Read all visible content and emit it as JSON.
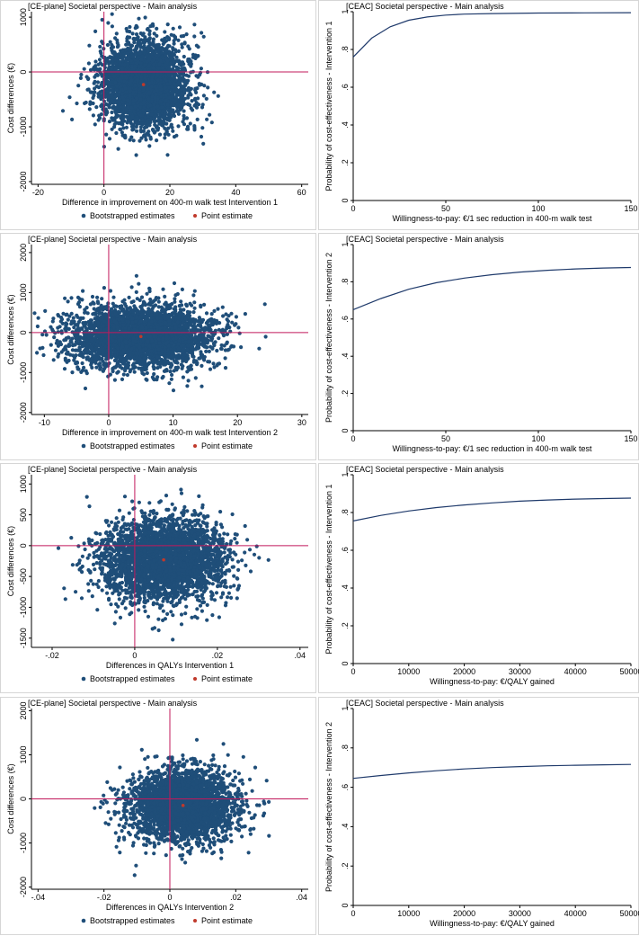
{
  "colors": {
    "scatter": "#1f4e79",
    "point": "#c0392b",
    "reference": "#c2185b",
    "curve": "#1f3a6b",
    "axis": "#000000"
  },
  "chart_data": [
    {
      "type": "scatter",
      "id": "ce1",
      "title": "[CE-plane] Societal perspective - Main analysis",
      "xlabel": "Difference in improvement on 400-m walk test Intervention 1",
      "ylabel": "Cost differences (€)",
      "xlim": [
        -22,
        62
      ],
      "ylim": [
        -2050,
        1100
      ],
      "xticks": [
        -20,
        0,
        20,
        40,
        60
      ],
      "yticks": [
        -2000,
        -1000,
        0,
        1000
      ],
      "point_estimate": {
        "x": 12,
        "y": -230
      },
      "cloud": {
        "center_x": 12,
        "center_y": -230,
        "sd_x": 6.5,
        "sd_y": 390
      },
      "legend": [
        "Bootstrapped estimates",
        "Point estimate"
      ]
    },
    {
      "type": "line",
      "id": "ceac1",
      "title": "[CEAC] Societal perspective - Main analysis",
      "xlabel": "Willingness-to-pay: €/1 sec reduction in 400-m walk test",
      "ylabel": "Probability of cost-effectiveness - Intervention 1",
      "xlim": [
        0,
        150
      ],
      "ylim": [
        0,
        1
      ],
      "xticks": [
        0,
        50,
        100,
        150
      ],
      "yticks": [
        0,
        0.2,
        0.4,
        0.6,
        0.8,
        1
      ],
      "ytick_labels": [
        "0",
        ".2",
        ".4",
        ".6",
        ".8",
        "1"
      ],
      "series": [
        {
          "name": "Intervention 1",
          "x": [
            0,
            10,
            20,
            30,
            40,
            50,
            60,
            75,
            100,
            125,
            150
          ],
          "y": [
            0.76,
            0.86,
            0.92,
            0.955,
            0.972,
            0.982,
            0.987,
            0.99,
            0.993,
            0.994,
            0.995
          ]
        }
      ]
    },
    {
      "type": "scatter",
      "id": "ce2",
      "title": "[CE-plane] Societal perspective - Main analysis",
      "xlabel": "Difference in improvement on 400-m walk test Intervention 2",
      "ylabel": "Cost differences (€)",
      "xlim": [
        -12,
        31
      ],
      "ylim": [
        -2050,
        2200
      ],
      "xticks": [
        -10,
        0,
        10,
        20,
        30
      ],
      "yticks": [
        -2000,
        -1000,
        0,
        1000,
        2000
      ],
      "point_estimate": {
        "x": 5,
        "y": -100
      },
      "cloud": {
        "center_x": 5,
        "center_y": -100,
        "sd_x": 5.5,
        "sd_y": 400
      },
      "legend": [
        "Bootstrapped estimates",
        "Point estimate"
      ]
    },
    {
      "type": "line",
      "id": "ceac2",
      "title": "[CEAC] Societal perspective - Main analysis",
      "xlabel": "Willingness-to-pay: €/1 sec reduction in 400-m walk test",
      "ylabel": "Probability of cost-effectiveness - Intervention 2",
      "xlim": [
        0,
        150
      ],
      "ylim": [
        0,
        1
      ],
      "xticks": [
        0,
        50,
        100,
        150
      ],
      "yticks": [
        0,
        0.2,
        0.4,
        0.6,
        0.8,
        1
      ],
      "ytick_labels": [
        "0",
        ".2",
        ".4",
        ".6",
        ".8",
        "1"
      ],
      "series": [
        {
          "name": "Intervention 2",
          "x": [
            0,
            15,
            30,
            45,
            60,
            75,
            90,
            105,
            120,
            135,
            150
          ],
          "y": [
            0.65,
            0.71,
            0.76,
            0.795,
            0.82,
            0.838,
            0.852,
            0.862,
            0.869,
            0.874,
            0.877
          ]
        }
      ]
    },
    {
      "type": "scatter",
      "id": "ce3",
      "title": "[CE-plane] Societal perspective - Main analysis",
      "xlabel": "Differences in QALYs Intervention 1",
      "ylabel": "Cost differences (€)",
      "xlim": [
        -0.025,
        0.042
      ],
      "ylim": [
        -1650,
        1150
      ],
      "xticks": [
        -0.02,
        0,
        0.02,
        0.04
      ],
      "xtick_labels": [
        "-.02",
        "0",
        ".02",
        ".04"
      ],
      "yticks": [
        -1500,
        -1000,
        -500,
        0,
        500,
        1000
      ],
      "point_estimate": {
        "x": 0.007,
        "y": -230
      },
      "cloud": {
        "center_x": 0.007,
        "center_y": -230,
        "sd_x": 0.0075,
        "sd_y": 330
      },
      "legend": [
        "Bootstrapped estimates",
        "Point estimate"
      ]
    },
    {
      "type": "line",
      "id": "ceac3",
      "title": "[CEAC] Societal perspective - Main analysis",
      "xlabel": "Willingness-to-pay: €/QALY gained",
      "ylabel": "Probability of cost-effectiveness - Intervention 1",
      "xlim": [
        0,
        50000
      ],
      "ylim": [
        0,
        1
      ],
      "xticks": [
        0,
        10000,
        20000,
        30000,
        40000,
        50000
      ],
      "yticks": [
        0,
        0.2,
        0.4,
        0.6,
        0.8,
        1
      ],
      "ytick_labels": [
        "0",
        ".2",
        ".4",
        ".6",
        ".8",
        "1"
      ],
      "series": [
        {
          "name": "Intervention 1",
          "x": [
            0,
            5000,
            10000,
            15000,
            20000,
            25000,
            30000,
            35000,
            40000,
            45000,
            50000
          ],
          "y": [
            0.755,
            0.785,
            0.808,
            0.826,
            0.84,
            0.851,
            0.86,
            0.866,
            0.871,
            0.874,
            0.876
          ]
        }
      ]
    },
    {
      "type": "scatter",
      "id": "ce4",
      "title": "[CE-plane] Societal perspective - Main analysis",
      "xlabel": "Differences in QALYs Intervention 2",
      "ylabel": "Cost differences (€)",
      "xlim": [
        -0.042,
        0.042
      ],
      "ylim": [
        -2050,
        2050
      ],
      "xticks": [
        -0.04,
        -0.02,
        0,
        0.02,
        0.04
      ],
      "xtick_labels": [
        "-.04",
        "-.02",
        "0",
        ".02",
        ".04"
      ],
      "yticks": [
        -2000,
        -1000,
        0,
        1000,
        2000
      ],
      "point_estimate": {
        "x": 0.004,
        "y": -150
      },
      "cloud": {
        "center_x": 0.004,
        "center_y": -150,
        "sd_x": 0.008,
        "sd_y": 400
      },
      "legend": [
        "Bootstrapped estimates",
        "Point estimate"
      ]
    },
    {
      "type": "line",
      "id": "ceac4",
      "title": "[CEAC] Societal perspective - Main analysis",
      "xlabel": "Willingness-to-pay: €/QALY gained",
      "ylabel": "Probability of cost-effectiveness - Intervention 2",
      "xlim": [
        0,
        50000
      ],
      "ylim": [
        0,
        1
      ],
      "xticks": [
        0,
        10000,
        20000,
        30000,
        40000,
        50000
      ],
      "yticks": [
        0,
        0.2,
        0.4,
        0.6,
        0.8,
        1
      ],
      "ytick_labels": [
        "0",
        ".2",
        ".4",
        ".6",
        ".8",
        "1"
      ],
      "series": [
        {
          "name": "Intervention 2",
          "x": [
            0,
            5000,
            10000,
            15000,
            20000,
            25000,
            30000,
            35000,
            40000,
            45000,
            50000
          ],
          "y": [
            0.645,
            0.66,
            0.673,
            0.684,
            0.693,
            0.7,
            0.705,
            0.709,
            0.712,
            0.714,
            0.716
          ]
        }
      ]
    }
  ]
}
